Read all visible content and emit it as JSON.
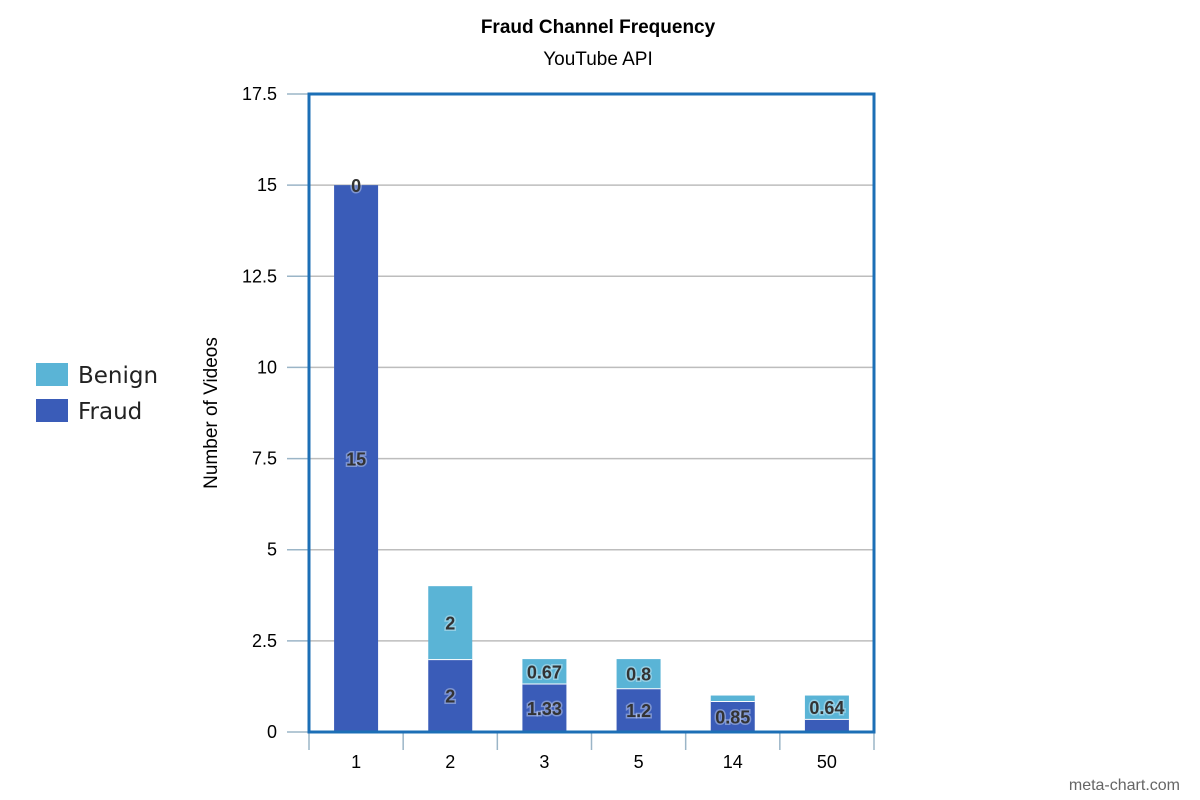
{
  "chart_data": {
    "type": "bar",
    "stacked": true,
    "title": "Fraud Channel Frequency",
    "subtitle": "YouTube API",
    "xlabel": "",
    "ylabel": "Number of Videos",
    "categories": [
      "1",
      "2",
      "3",
      "5",
      "14",
      "50"
    ],
    "series": [
      {
        "name": "Fraud",
        "color": "#3a5cb8",
        "values": [
          15,
          2,
          1.33,
          1.2,
          0.85,
          0.36
        ],
        "labels": [
          "15",
          "2",
          "1.33",
          "1.2",
          "0.85",
          ""
        ]
      },
      {
        "name": "Benign",
        "color": "#5ab4d6",
        "values": [
          0,
          2,
          0.67,
          0.8,
          0.15,
          0.64
        ],
        "labels": [
          "0",
          "2",
          "0.67",
          "0.8",
          "",
          "0.64"
        ]
      }
    ],
    "ylim": [
      0,
      17.5
    ],
    "yticks": [
      0,
      2.5,
      5,
      7.5,
      10,
      12.5,
      15,
      17.5
    ],
    "ytick_labels": [
      "0",
      "2.5",
      "5",
      "7.5",
      "10",
      "12.5",
      "15",
      "17.5"
    ],
    "grid": true,
    "legend_position": "left",
    "legend_order": [
      "Benign",
      "Fraud"
    ],
    "frame_color": "#1c6fb6",
    "credit": "meta-chart.com"
  }
}
